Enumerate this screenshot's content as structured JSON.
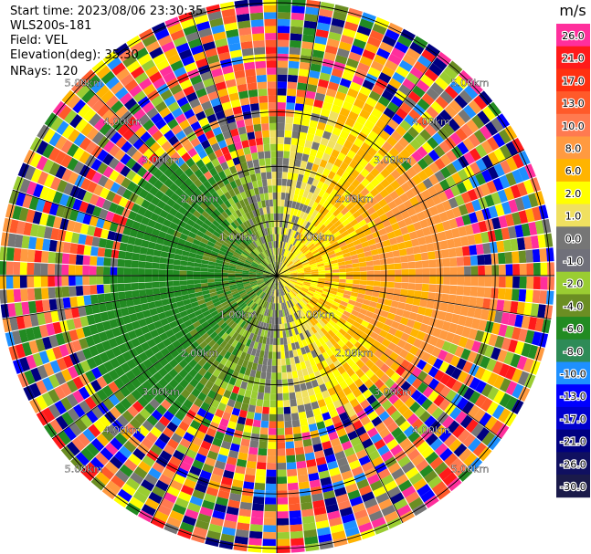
{
  "header": {
    "start_time": "Start time: 2023/08/06 23:30:35",
    "instrument": "WLS200s-181",
    "field": "Field: VEL",
    "elevation": "Elevation(deg): 35.30",
    "nrays": "NRays: 120"
  },
  "chart_data": {
    "type": "heatmap",
    "projection": "polar-ppi",
    "nrays": 120,
    "max_range_km": 6.0,
    "range_ring_labels": [
      "1.00km",
      "2.00km",
      "3.00km",
      "4.00km",
      "5.00km"
    ],
    "colorbar": {
      "unit": "m/s",
      "tick_labels": [
        "26.0",
        "21.0",
        "17.0",
        "13.0",
        "10.0",
        "8.0",
        "6.0",
        "2.0",
        "1.0",
        "0.0",
        "-1.0",
        "-2.0",
        "-4.0",
        "-6.0",
        "-8.0",
        "-10.0",
        "-13.0",
        "-17.0",
        "-21.0",
        "-26.0",
        "-30.0"
      ],
      "colors": [
        "#ff2f9c",
        "#ff1a1a",
        "#ff3010",
        "#ff5a2a",
        "#ff7a50",
        "#ff9a40",
        "#ffb400",
        "#ffff00",
        "#f0e060",
        "#767676",
        "#70707a",
        "#9acd32",
        "#6b8e23",
        "#228b22",
        "#2e8b57",
        "#1e90ff",
        "#0000ff",
        "#0000cd",
        "#000080",
        "#101060",
        "#1a1a4a"
      ]
    }
  }
}
